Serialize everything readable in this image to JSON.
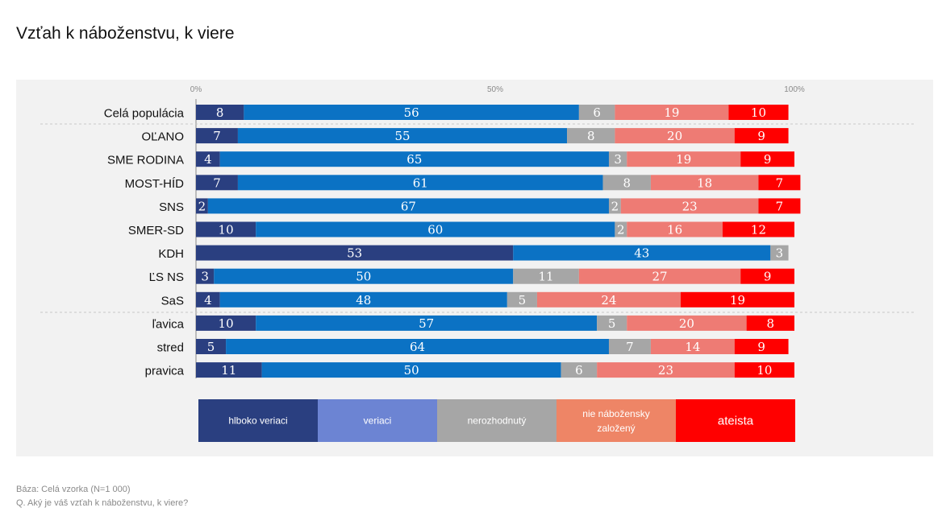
{
  "title": "Vzťah k náboženstvu, k viere",
  "chart_data": {
    "type": "bar",
    "orientation": "horizontal",
    "stacked": true,
    "categories": [
      "Celá populácia",
      "OĽANO",
      "SME RODINA",
      "MOST-HÍD",
      "SNS",
      "SMER-SD",
      "KDH",
      "ĽS NS",
      "SaS",
      "ľavica",
      "stred",
      "pravica"
    ],
    "series": [
      {
        "name": "hlboko veriaci",
        "color": "#2a3f80",
        "values": [
          8,
          7,
          4,
          7,
          2,
          10,
          53,
          3,
          4,
          10,
          5,
          11
        ]
      },
      {
        "name": "veriaci",
        "color": "#0b72c4",
        "values": [
          56,
          55,
          65,
          61,
          67,
          60,
          43,
          50,
          48,
          57,
          64,
          50
        ]
      },
      {
        "name": "nerozhodnutý",
        "color": "#a6a6a6",
        "values": [
          6,
          8,
          3,
          8,
          2,
          2,
          3,
          11,
          5,
          5,
          7,
          6
        ]
      },
      {
        "name": "nie nábožensky založený",
        "color": "#ee7b74",
        "values": [
          19,
          20,
          19,
          18,
          23,
          16,
          0,
          27,
          24,
          20,
          14,
          23
        ]
      },
      {
        "name": "ateista",
        "color": "#ff0000",
        "values": [
          10,
          9,
          9,
          7,
          7,
          12,
          0,
          9,
          19,
          8,
          9,
          10
        ]
      }
    ],
    "xlim": [
      0,
      100
    ],
    "x_ticks": [
      "0%",
      "50%",
      "100%"
    ],
    "legend": {
      "position": "bottom",
      "items": [
        {
          "label": "hlboko veriaci",
          "color": "#2a3f80"
        },
        {
          "label": "veriaci",
          "color": "#6c84d3"
        },
        {
          "label": "nerozhodnutý",
          "color": "#a6a6a6"
        },
        {
          "label_lines": [
            "nie nábožensky",
            "založený"
          ],
          "color": "#ee8566"
        },
        {
          "label": "ateista",
          "color": "#ff0000"
        }
      ]
    }
  },
  "footer": {
    "base": "Báza: Celá vzorka (N=1 000)",
    "question": "Q. Aký je váš vzťah k náboženstvu, k viere?"
  }
}
